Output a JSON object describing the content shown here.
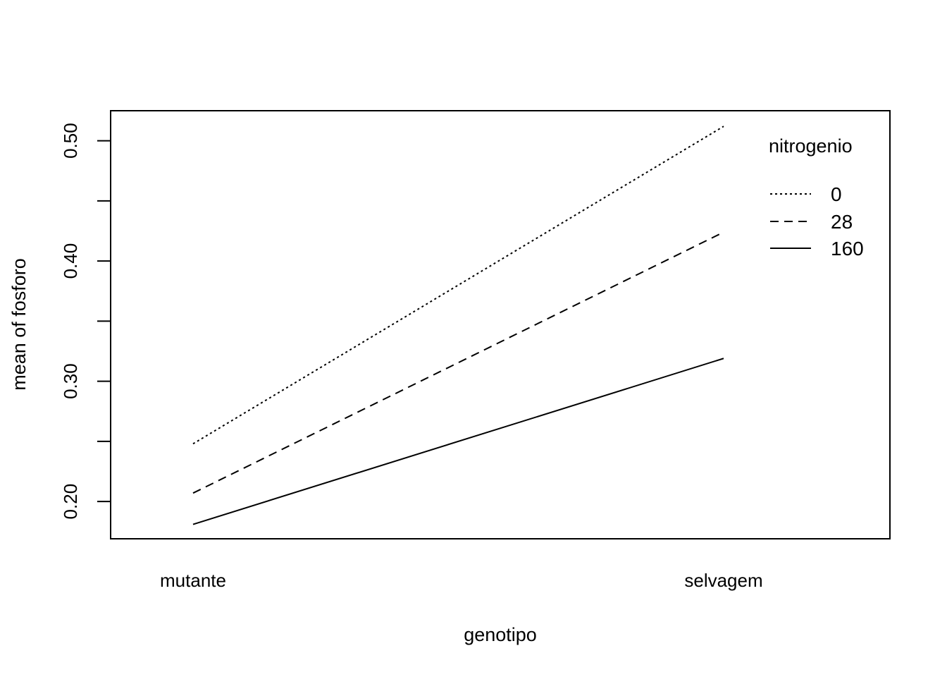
{
  "chart_data": {
    "type": "line",
    "xlabel": "genotipo",
    "ylabel": "mean of  fosforo",
    "categories": [
      "mutante",
      "selvagem"
    ],
    "yticks": [
      "0.20",
      "0.30",
      "0.40",
      "0.50"
    ],
    "ytick_values": [
      0.2,
      0.3,
      0.4,
      0.5
    ],
    "yminor_ticks": [
      0.25,
      0.35,
      0.45
    ],
    "ylim": [
      0.169,
      0.525
    ],
    "grid": false,
    "legend_title": "nitrogenio",
    "legend_position": "top-right",
    "series": [
      {
        "name": "0",
        "values": [
          0.248,
          0.512
        ],
        "line_style": "dotted"
      },
      {
        "name": "28",
        "values": [
          0.207,
          0.424
        ],
        "line_style": "dashed"
      },
      {
        "name": "160",
        "values": [
          0.181,
          0.319
        ],
        "line_style": "solid"
      }
    ]
  }
}
